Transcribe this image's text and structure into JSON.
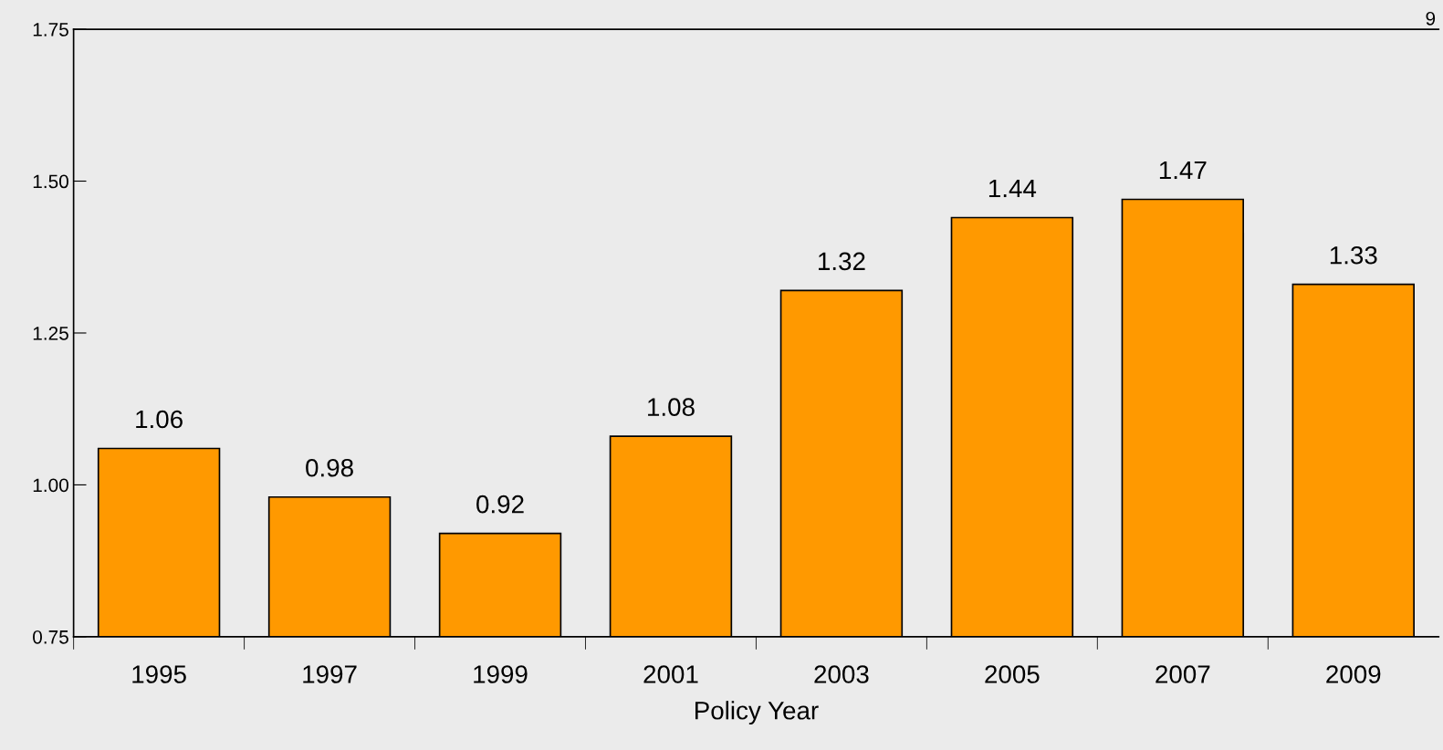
{
  "chart_data": {
    "type": "bar",
    "xlabel": "Policy Year",
    "categories": [
      "1995",
      "1997",
      "1999",
      "2001",
      "2003",
      "2005",
      "2007",
      "2009"
    ],
    "values": [
      1.06,
      0.98,
      0.92,
      1.08,
      1.32,
      1.44,
      1.47,
      1.33
    ],
    "color": "#ff9900",
    "data_labels": true,
    "ylim": [
      0.75,
      1.75
    ],
    "yticks": [
      {
        "value": 0.75,
        "label": "0.75"
      },
      {
        "value": 1.0,
        "label": "1.00"
      },
      {
        "value": 1.25,
        "label": "1.25"
      },
      {
        "value": 1.5,
        "label": "1.50"
      },
      {
        "value": 1.75,
        "label": "1.75"
      }
    ],
    "grid": false,
    "legend": false,
    "annotations": [
      "9"
    ]
  }
}
